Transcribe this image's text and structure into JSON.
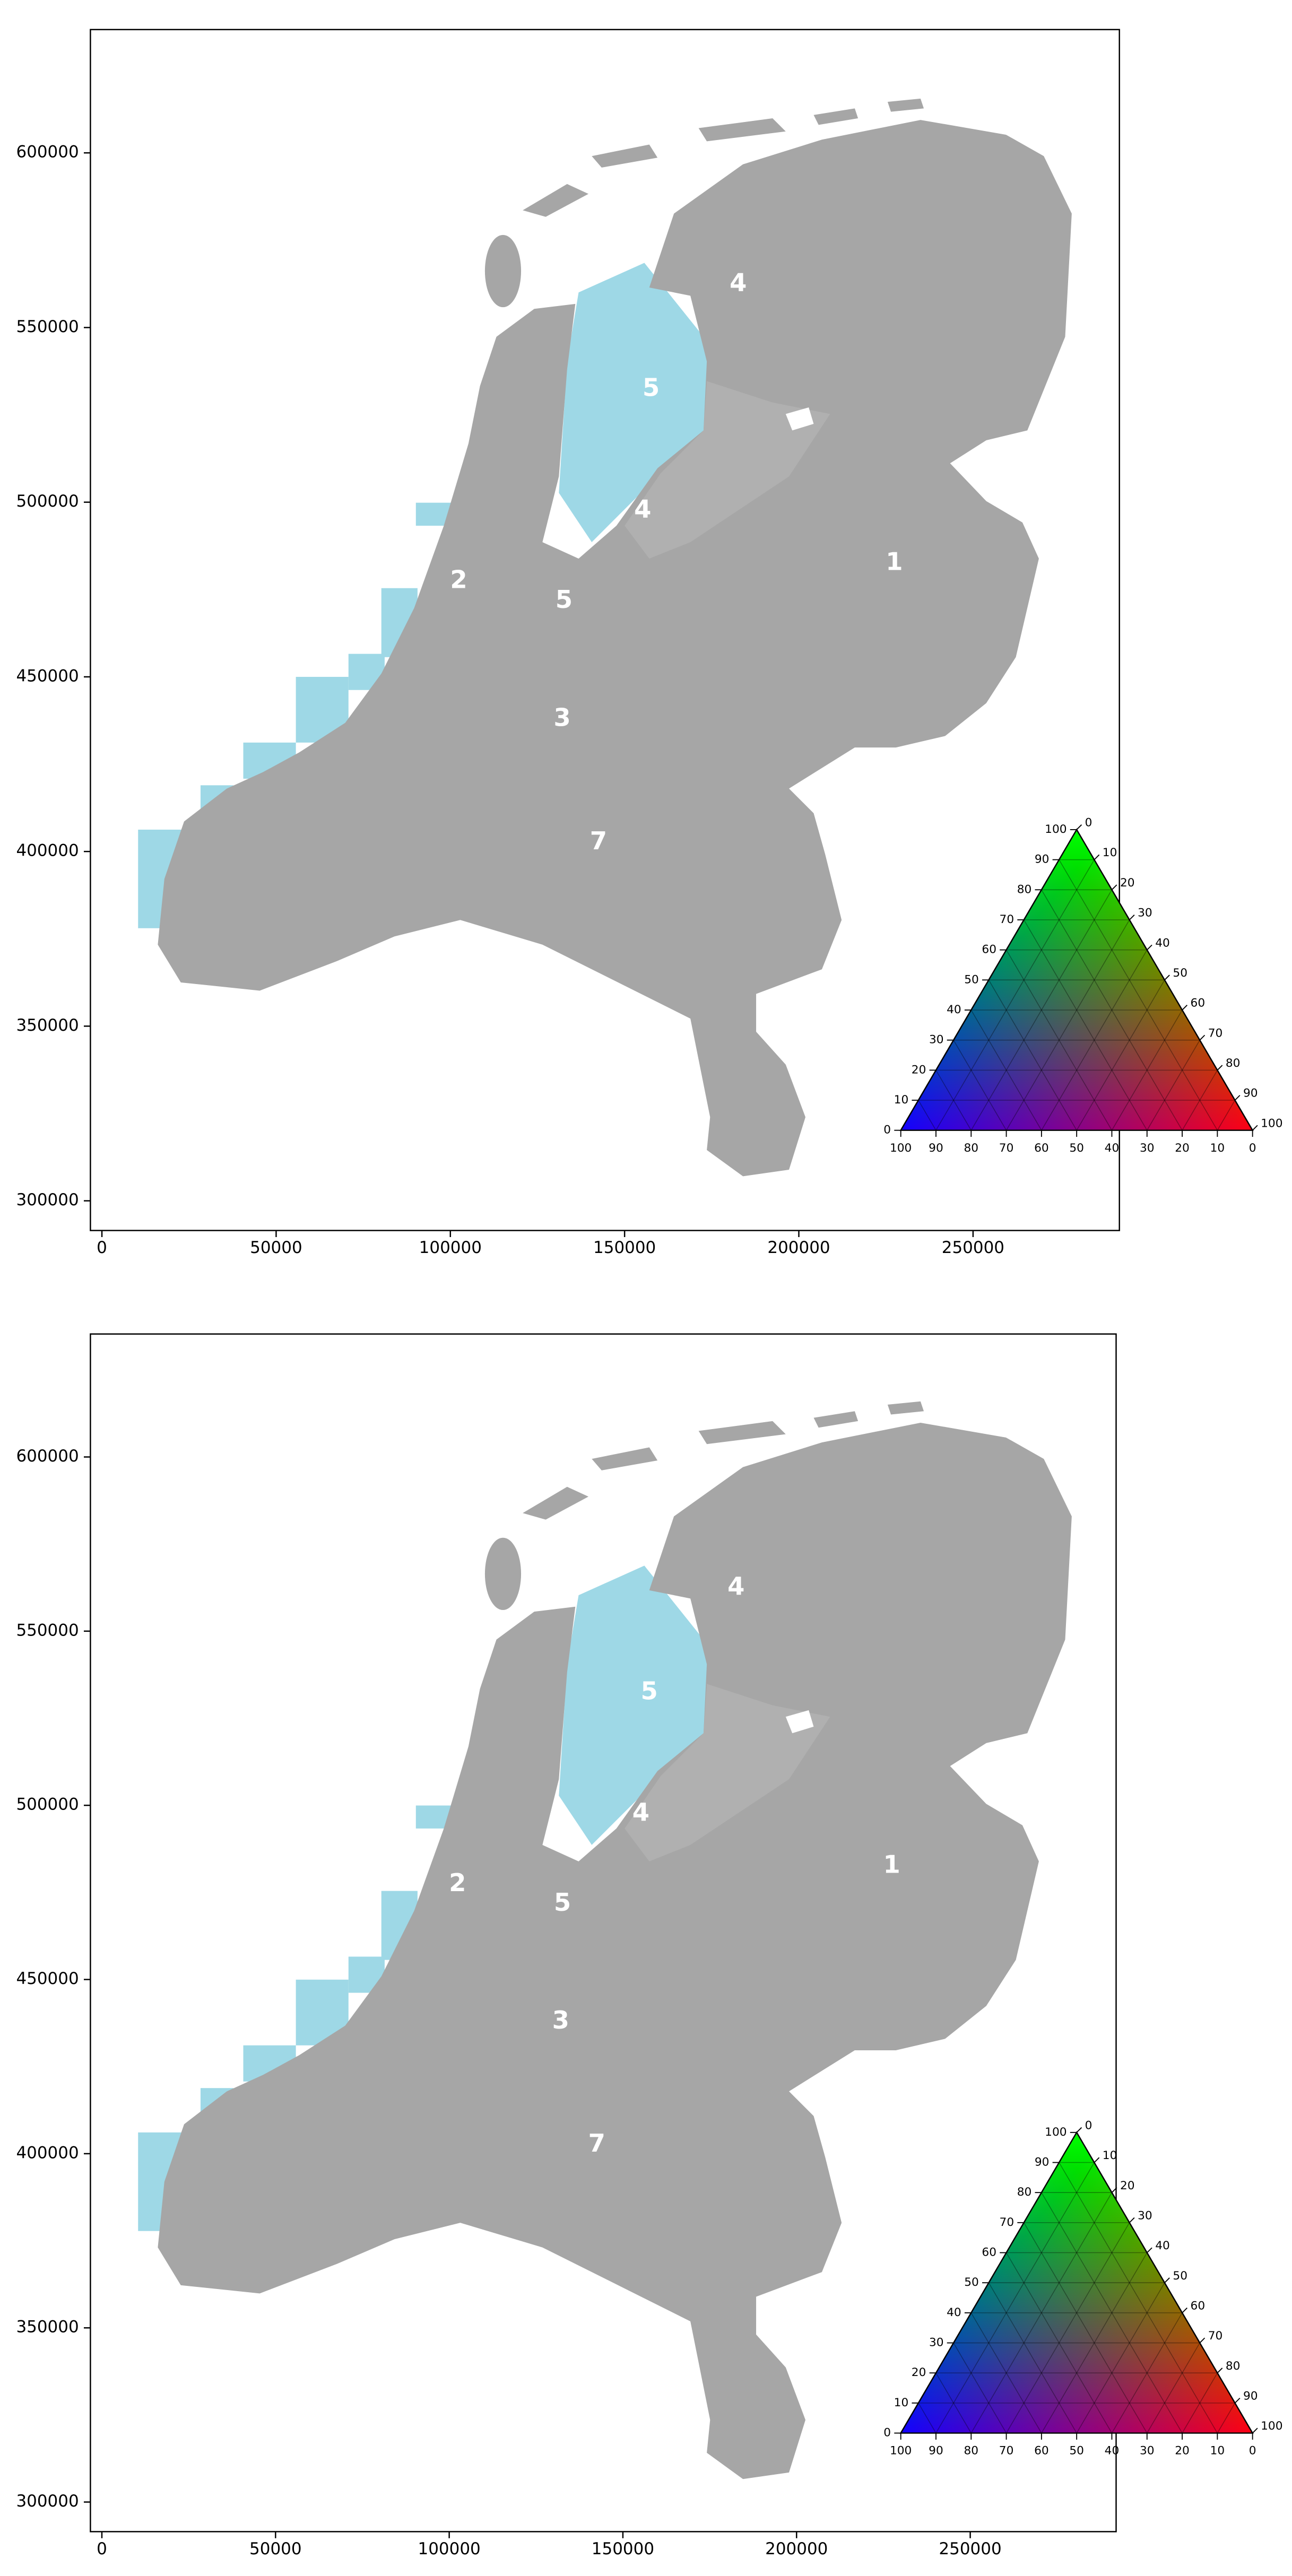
{
  "chart_data": [
    {
      "type": "map",
      "xlim": [
        -3300,
        292000
      ],
      "ylim": [
        291500,
        635300
      ],
      "xticks": [
        0,
        50000,
        100000,
        150000,
        200000,
        250000
      ],
      "yticks": [
        300000,
        350000,
        400000,
        450000,
        500000,
        550000,
        600000
      ],
      "annotations": [
        {
          "text": "1",
          "x": 227400,
          "y": 482500
        },
        {
          "text": "2",
          "x": 102400,
          "y": 477300
        },
        {
          "text": "3",
          "x": 132100,
          "y": 437800
        },
        {
          "text": "4",
          "x": 182600,
          "y": 562400
        },
        {
          "text": "4",
          "x": 155200,
          "y": 497500
        },
        {
          "text": "5",
          "x": 157600,
          "y": 532300
        },
        {
          "text": "5",
          "x": 132600,
          "y": 471600
        },
        {
          "text": "7",
          "x": 142500,
          "y": 402500
        }
      ],
      "ternary": {
        "ticks": [
          0,
          10,
          20,
          30,
          40,
          50,
          60,
          70,
          80,
          90,
          100
        ]
      }
    },
    {
      "type": "map",
      "xlim": [
        -3300,
        292000
      ],
      "ylim": [
        291500,
        635300
      ],
      "xticks": [
        0,
        50000,
        100000,
        150000,
        200000,
        250000
      ],
      "yticks": [
        300000,
        350000,
        400000,
        450000,
        500000,
        550000,
        600000
      ],
      "annotations": [
        {
          "text": "1",
          "x": 227400,
          "y": 482500
        },
        {
          "text": "2",
          "x": 102400,
          "y": 477300
        },
        {
          "text": "3",
          "x": 132100,
          "y": 437800
        },
        {
          "text": "4",
          "x": 182600,
          "y": 562400
        },
        {
          "text": "4",
          "x": 155200,
          "y": 497500
        },
        {
          "text": "5",
          "x": 157600,
          "y": 532300
        },
        {
          "text": "5",
          "x": 132600,
          "y": 471600
        },
        {
          "text": "7",
          "x": 142500,
          "y": 402500
        }
      ],
      "ternary": {
        "ticks": [
          0,
          10,
          20,
          30,
          40,
          50,
          60,
          70,
          80,
          90,
          100
        ]
      }
    }
  ]
}
